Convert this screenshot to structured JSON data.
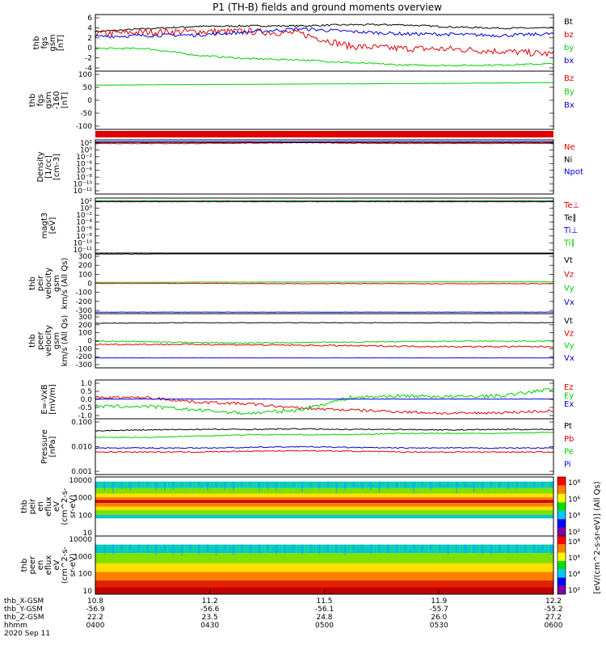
{
  "title": "P1 (TH-B) fields and ground moments overview",
  "colors": {
    "black": "#000000",
    "red": "#e00000",
    "green": "#00d000",
    "blue": "#0000d8"
  },
  "chart_data": [
    {
      "type": "line",
      "ylabel": [
        "thb",
        "fgs",
        "gsm",
        "[nT]"
      ],
      "yticks": [
        "6",
        "4",
        "2",
        "0",
        "-2",
        "-4"
      ],
      "ylim": [
        -4,
        6
      ],
      "series": [
        {
          "name": "Bt",
          "color": "#000000",
          "y": [
            3.0,
            3.5,
            3.9,
            4.0,
            4.0,
            4.2,
            4.2,
            3.8,
            3.6,
            3.6
          ],
          "noise": 0.15
        },
        {
          "name": "bz",
          "color": "#e00000",
          "y": [
            2.6,
            2.9,
            3.0,
            3.0,
            2.7,
            0.4,
            0.0,
            -0.1,
            -0.5,
            -1.0
          ],
          "noise": 0.6
        },
        {
          "name": "by",
          "color": "#00d000",
          "y": [
            0.0,
            0.0,
            -1.2,
            -1.8,
            -2.0,
            -2.5,
            -2.9,
            -3.0,
            -2.9,
            -2.7
          ],
          "noise": 0.15
        },
        {
          "name": "bx",
          "color": "#0000d8",
          "y": [
            2.1,
            2.3,
            2.4,
            2.9,
            3.5,
            3.0,
            2.6,
            2.5,
            2.3,
            2.6
          ],
          "noise": 0.3
        }
      ]
    },
    {
      "type": "line",
      "ylabel": [
        "thb",
        "fgs",
        "gsm",
        "-160",
        "[nT]"
      ],
      "yticks": [
        "100",
        "50",
        "0",
        "-50",
        "-100"
      ],
      "ylim": [
        -130,
        100
      ],
      "series": [
        {
          "name": "Bz",
          "color": "#e00000",
          "y": [],
          "noise": 0
        },
        {
          "name": "By",
          "color": "#00d000",
          "y": [
            45,
            46,
            47,
            48,
            49,
            50,
            51,
            52,
            53,
            55
          ],
          "noise": 0.5
        },
        {
          "name": "Bx",
          "color": "#0000d8",
          "y": [],
          "noise": 0
        }
      ]
    },
    {
      "type": "line",
      "ylabel": [
        "Density",
        "[1/cc]",
        "[cm-3]"
      ],
      "yticks": [
        "10²",
        "10⁰",
        "10⁻²",
        "10⁻⁴",
        "10⁻⁶",
        "10⁻⁸",
        "10⁻¹⁰",
        "10⁻¹²"
      ],
      "ylim": [
        -13,
        2
      ],
      "series": [
        {
          "name": "Ne",
          "color": "#e00000",
          "y": [
            1.0,
            1.0,
            1.0,
            1.1,
            1.2,
            1.1,
            1.0,
            1.0,
            1.0,
            1.0
          ],
          "noise": 0.1
        },
        {
          "name": "Ni",
          "color": "#000000",
          "y": [
            1.3,
            1.3,
            1.3,
            1.3,
            1.3,
            1.3,
            1.3,
            1.3,
            1.3,
            1.3
          ],
          "noise": 0.05
        },
        {
          "name": "Npot",
          "color": "#0000d8",
          "y": [
            1.5,
            1.5,
            1.5,
            1.5,
            1.5,
            1.5,
            1.5,
            1.5,
            1.5,
            1.5
          ],
          "noise": 0.02
        }
      ]
    },
    {
      "type": "line",
      "ylabel": [
        "magt3",
        "[eV]"
      ],
      "yticks": [
        "10²",
        "10⁰",
        "10⁻²",
        "10⁻⁴",
        "10⁻⁶",
        "10⁻⁸",
        "10⁻¹⁰",
        "10⁻¹²"
      ],
      "ylim": [
        -13,
        2
      ],
      "series": [
        {
          "name": "Te⊥",
          "color": "#e00000",
          "y": [
            1.0,
            1.0,
            1.0,
            1.0,
            1.0,
            1.0,
            1.0,
            1.0,
            1.0,
            1.0
          ],
          "noise": 0.05
        },
        {
          "name": "Te∥",
          "color": "#000000",
          "y": [
            1.1,
            1.1,
            1.1,
            1.1,
            1.1,
            1.1,
            1.1,
            1.1,
            1.1,
            1.1
          ],
          "noise": 0.05
        },
        {
          "name": "Ti⊥",
          "color": "#0000d8",
          "y": [
            1.2,
            1.2,
            1.2,
            1.2,
            1.2,
            1.2,
            1.2,
            1.2,
            1.2,
            1.2
          ],
          "noise": 0.03
        },
        {
          "name": "Ti∥",
          "color": "#00d000",
          "y": [
            1.3,
            1.3,
            1.3,
            1.3,
            1.3,
            1.3,
            1.3,
            1.3,
            1.3,
            1.3
          ],
          "noise": 0.03
        }
      ]
    },
    {
      "type": "line",
      "ylabel": [
        "thb",
        "peir",
        "velocity",
        "gsm",
        "km/s (All Qs)"
      ],
      "yticks": [
        "300",
        "200",
        "100",
        "0",
        "-100",
        "-200",
        "-300"
      ],
      "ylim": [
        -300,
        300
      ],
      "series": [
        {
          "name": "Vt",
          "color": "#000000",
          "y": [
            290,
            292,
            295,
            295,
            295,
            295,
            295,
            295,
            295,
            295
          ],
          "noise": 3
        },
        {
          "name": "Vz",
          "color": "#e00000",
          "y": [
            0,
            0,
            0,
            -2,
            -3,
            -2,
            -3,
            -3,
            -3,
            -3
          ],
          "noise": 3
        },
        {
          "name": "Vy",
          "color": "#00d000",
          "y": [
            10,
            10,
            12,
            12,
            13,
            13,
            14,
            15,
            15,
            15
          ],
          "noise": 1
        },
        {
          "name": "Vx",
          "color": "#0000d8",
          "y": [
            -285,
            -285,
            -285,
            -285,
            -285,
            -285,
            -285,
            -285,
            -285,
            -285
          ],
          "noise": 1
        }
      ]
    },
    {
      "type": "line",
      "ylabel": [
        "thb",
        "peer",
        "velocity",
        "gsm",
        "km/s (All Qs)"
      ],
      "yticks": [
        "300",
        "200",
        "100",
        "0",
        "-100",
        "-200",
        "-300"
      ],
      "ylim": [
        -300,
        300
      ],
      "series": [
        {
          "name": "Vt",
          "color": "#000000",
          "y": [
            195,
            197,
            200,
            200,
            200,
            200,
            200,
            200,
            200,
            200
          ],
          "noise": 3
        },
        {
          "name": "Vz",
          "color": "#e00000",
          "y": [
            -40,
            -40,
            -40,
            -45,
            -50,
            -55,
            -60,
            -65,
            -65,
            -65
          ],
          "noise": 8
        },
        {
          "name": "Vy",
          "color": "#00d000",
          "y": [
            -5,
            -10,
            -20,
            -25,
            -20,
            -15,
            -10,
            -5,
            -5,
            -5
          ],
          "noise": 6
        },
        {
          "name": "Vx",
          "color": "#0000d8",
          "y": [
            -190,
            -190,
            -190,
            -190,
            -190,
            -190,
            -190,
            -190,
            -190,
            -190
          ],
          "noise": 1
        }
      ]
    },
    {
      "type": "line",
      "ylabel": [
        "E=-VxB",
        "[mV/m]"
      ],
      "yticks": [
        "1.0",
        "0.5",
        "0.0",
        "-0.5",
        "-1.0"
      ],
      "ylim": [
        -1.1,
        1.1
      ],
      "series": [
        {
          "name": "Ez",
          "color": "#e00000",
          "y": [
            0.1,
            0.1,
            -0.15,
            -0.25,
            -0.5,
            -0.6,
            -0.7,
            -0.8,
            -0.75,
            -0.65
          ],
          "noise": 0.08
        },
        {
          "name": "Ey",
          "color": "#00d000",
          "y": [
            -0.4,
            -0.4,
            -0.6,
            -0.8,
            -0.6,
            0.1,
            0.2,
            0.15,
            0.2,
            0.6
          ],
          "noise": 0.1
        },
        {
          "name": "Ex",
          "color": "#0000d8",
          "y": [
            0.02,
            0.02,
            0.02,
            0.02,
            0.02,
            0.02,
            0.02,
            0.02,
            0.02,
            0.02
          ],
          "noise": 0.01
        }
      ]
    },
    {
      "type": "line",
      "ylabel": [
        "Pressure",
        "[nPa]"
      ],
      "yticks": [
        "0.100",
        "0.010",
        "0.001"
      ],
      "ylim": [
        -3,
        -0.9
      ],
      "series": [
        {
          "name": "Pt",
          "color": "#000000",
          "y": [
            -1.35,
            -1.32,
            -1.3,
            -1.3,
            -1.28,
            -1.3,
            -1.3,
            -1.32,
            -1.3,
            -1.3
          ],
          "noise": 0.02
        },
        {
          "name": "Pb",
          "color": "#e00000",
          "y": [
            -2.15,
            -2.15,
            -2.15,
            -2.12,
            -2.1,
            -2.12,
            -2.15,
            -2.15,
            -2.15,
            -2.15
          ],
          "noise": 0.02
        },
        {
          "name": "Pe",
          "color": "#00d000",
          "y": [
            -1.6,
            -1.6,
            -1.55,
            -1.5,
            -1.5,
            -1.5,
            -1.45,
            -1.45,
            -1.45,
            -1.4
          ],
          "noise": 0.02
        },
        {
          "name": "Pi",
          "color": "#0000d8",
          "y": [
            -2.0,
            -2.0,
            -2.0,
            -1.98,
            -1.95,
            -1.98,
            -2.0,
            -2.0,
            -2.0,
            -2.0
          ],
          "noise": 0.02
        }
      ]
    },
    {
      "type": "heatmap",
      "ylabel": [
        "thb",
        "peir",
        "en",
        "eflux",
        "eV",
        "(cm^2-s-",
        "sr-eV)"
      ],
      "yticks": [
        "10000",
        "1000",
        "100",
        "10"
      ],
      "ylim": [
        1,
        4.2
      ],
      "colorbar_ticks": [
        "10⁸",
        "10⁶",
        "10⁴",
        "10²"
      ],
      "colorbar_label": "[eV/(cm^2-s-sr-eV)] (All Qs)"
    },
    {
      "type": "heatmap",
      "ylabel": [
        "thb",
        "peer",
        "en",
        "eflux",
        "eV",
        "(cm^2-s-",
        "sr-eV)"
      ],
      "yticks": [
        "10000",
        "1000",
        "100",
        "10"
      ],
      "ylim": [
        0.8,
        4.2
      ],
      "colorbar_ticks": [
        "10⁸",
        "10⁶",
        "10⁴",
        "10²"
      ],
      "colorbar_label": "[eV/(cm^2-s-sr-eV)] (All Qs)"
    }
  ],
  "x_axis": {
    "row_labels": [
      "thb_X-GSM",
      "thb_Y-GSM",
      "thb_Z-GSM",
      "hhmm",
      "2020 Sep 11"
    ],
    "columns": [
      [
        "10.8",
        "-56.9",
        "22.2",
        "0400"
      ],
      [
        "11.2",
        "-56.6",
        "23.5",
        "0430"
      ],
      [
        "11.5",
        "-56.1",
        "24.8",
        "0500"
      ],
      [
        "11.9",
        "-55.7",
        "26.0",
        "0530"
      ],
      [
        "12.2",
        "-55.2",
        "27.2",
        "0600"
      ]
    ]
  }
}
